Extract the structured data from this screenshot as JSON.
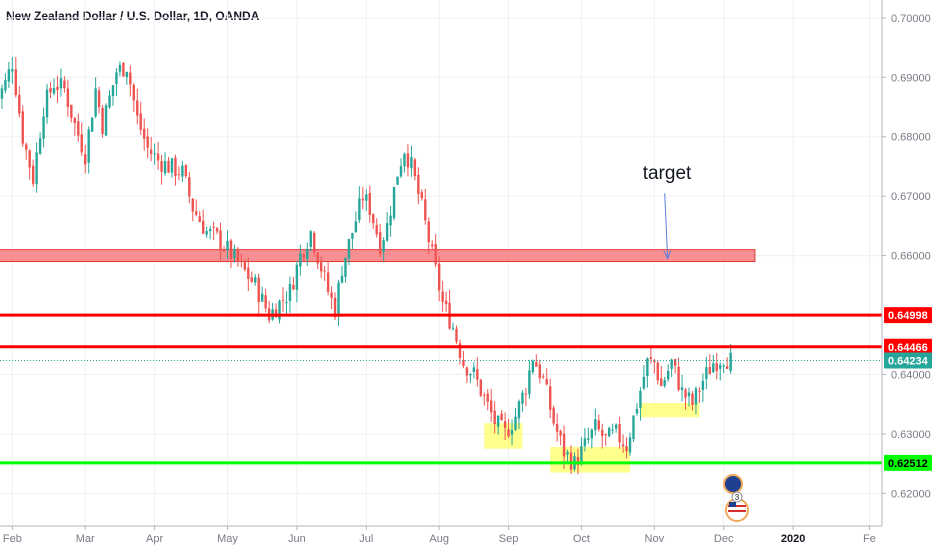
{
  "header": {
    "title": "New Zealand Dollar / U.S. Dollar, 1D, OANDA"
  },
  "colors": {
    "up": "#26a69a",
    "down": "#ef5350",
    "grid": "#eef0f3",
    "axis_text": "#787b86",
    "resistance": "#ff0000",
    "support": "#00ff00",
    "zone_fill": "#f77c80",
    "highlight": "#ffff66",
    "arrow": "#5b7fd6",
    "last_price_line": "#26a69a"
  },
  "annotations": {
    "target_label": "target"
  },
  "chart_data": {
    "type": "candlestick",
    "ylim": [
      0.614,
      0.7025
    ],
    "y_ticks": [
      0.62,
      0.63,
      0.64,
      0.66,
      0.67,
      0.68,
      0.69,
      0.7
    ],
    "x_ticks": [
      "Feb",
      "Mar",
      "Apr",
      "May",
      "Jun",
      "Jul",
      "Aug",
      "Sep",
      "Oct",
      "Nov",
      "Dec",
      "2020",
      "Fe"
    ],
    "x_tick_index": [
      5,
      26,
      46,
      67,
      87,
      107,
      128,
      148,
      169,
      190,
      210,
      230,
      252
    ],
    "levels": [
      {
        "name": "resistance_1",
        "price": 0.64998,
        "label": "0.64998",
        "color": "#ff0000"
      },
      {
        "name": "resistance_2",
        "price": 0.64466,
        "label": "0.64466",
        "color": "#ff0000"
      },
      {
        "name": "support",
        "price": 0.62512,
        "label": "0.62512",
        "color": "#00ff00"
      }
    ],
    "last_price": {
      "price": 0.64234,
      "label": "0.64234",
      "color": "#26a69a"
    },
    "target_zone": {
      "price_low": 0.659,
      "price_high": 0.661,
      "idx_start": 0,
      "idx_end": 219
    },
    "target_arrow": {
      "idx": 193,
      "price_from": 0.6705,
      "price_to": 0.6595
    },
    "highlights": [
      {
        "idx_start": 141,
        "idx_end": 152,
        "price_low": 0.6275,
        "price_high": 0.6318
      },
      {
        "idx_start": 160,
        "idx_end": 183,
        "price_low": 0.6235,
        "price_high": 0.6278
      },
      {
        "idx_start": 186,
        "idx_end": 203,
        "price_low": 0.6328,
        "price_high": 0.6352
      }
    ],
    "anchors": [
      [
        0,
        0.6855
      ],
      [
        3,
        0.689
      ],
      [
        5,
        0.6925
      ],
      [
        8,
        0.68
      ],
      [
        11,
        0.673
      ],
      [
        14,
        0.685
      ],
      [
        17,
        0.689
      ],
      [
        20,
        0.688
      ],
      [
        23,
        0.682
      ],
      [
        26,
        0.677
      ],
      [
        29,
        0.688
      ],
      [
        31,
        0.682
      ],
      [
        35,
        0.691
      ],
      [
        38,
        0.692
      ],
      [
        41,
        0.683
      ],
      [
        44,
        0.678
      ],
      [
        47,
        0.676
      ],
      [
        50,
        0.675
      ],
      [
        54,
        0.674
      ],
      [
        57,
        0.668
      ],
      [
        61,
        0.664
      ],
      [
        64,
        0.663
      ],
      [
        67,
        0.661
      ],
      [
        71,
        0.658
      ],
      [
        75,
        0.655
      ],
      [
        79,
        0.65
      ],
      [
        82,
        0.652
      ],
      [
        85,
        0.654
      ],
      [
        88,
        0.66
      ],
      [
        91,
        0.664
      ],
      [
        93,
        0.66
      ],
      [
        96,
        0.654
      ],
      [
        98,
        0.651
      ],
      [
        100,
        0.658
      ],
      [
        103,
        0.664
      ],
      [
        106,
        0.67
      ],
      [
        108,
        0.668
      ],
      [
        111,
        0.662
      ],
      [
        113,
        0.665
      ],
      [
        116,
        0.674
      ],
      [
        118,
        0.678
      ],
      [
        120,
        0.675
      ],
      [
        123,
        0.668
      ],
      [
        126,
        0.66
      ],
      [
        129,
        0.652
      ],
      [
        132,
        0.648
      ],
      [
        135,
        0.642
      ],
      [
        138,
        0.64
      ],
      [
        141,
        0.636
      ],
      [
        144,
        0.632
      ],
      [
        147,
        0.63
      ],
      [
        150,
        0.633
      ],
      [
        153,
        0.638
      ],
      [
        155,
        0.643
      ],
      [
        158,
        0.639
      ],
      [
        161,
        0.632
      ],
      [
        164,
        0.627
      ],
      [
        167,
        0.625
      ],
      [
        170,
        0.628
      ],
      [
        173,
        0.631
      ],
      [
        176,
        0.629
      ],
      [
        179,
        0.63
      ],
      [
        182,
        0.628
      ],
      [
        185,
        0.635
      ],
      [
        188,
        0.642
      ],
      [
        190,
        0.642
      ],
      [
        192,
        0.638
      ],
      [
        195,
        0.642
      ],
      [
        198,
        0.637
      ],
      [
        201,
        0.635
      ],
      [
        204,
        0.639
      ],
      [
        207,
        0.642
      ],
      [
        210,
        0.643
      ],
      [
        212,
        0.6423
      ]
    ]
  },
  "flags": {
    "nz_flag": "nz-flag-icon",
    "us_flag": "us-flag-icon",
    "badge_count": "3"
  }
}
